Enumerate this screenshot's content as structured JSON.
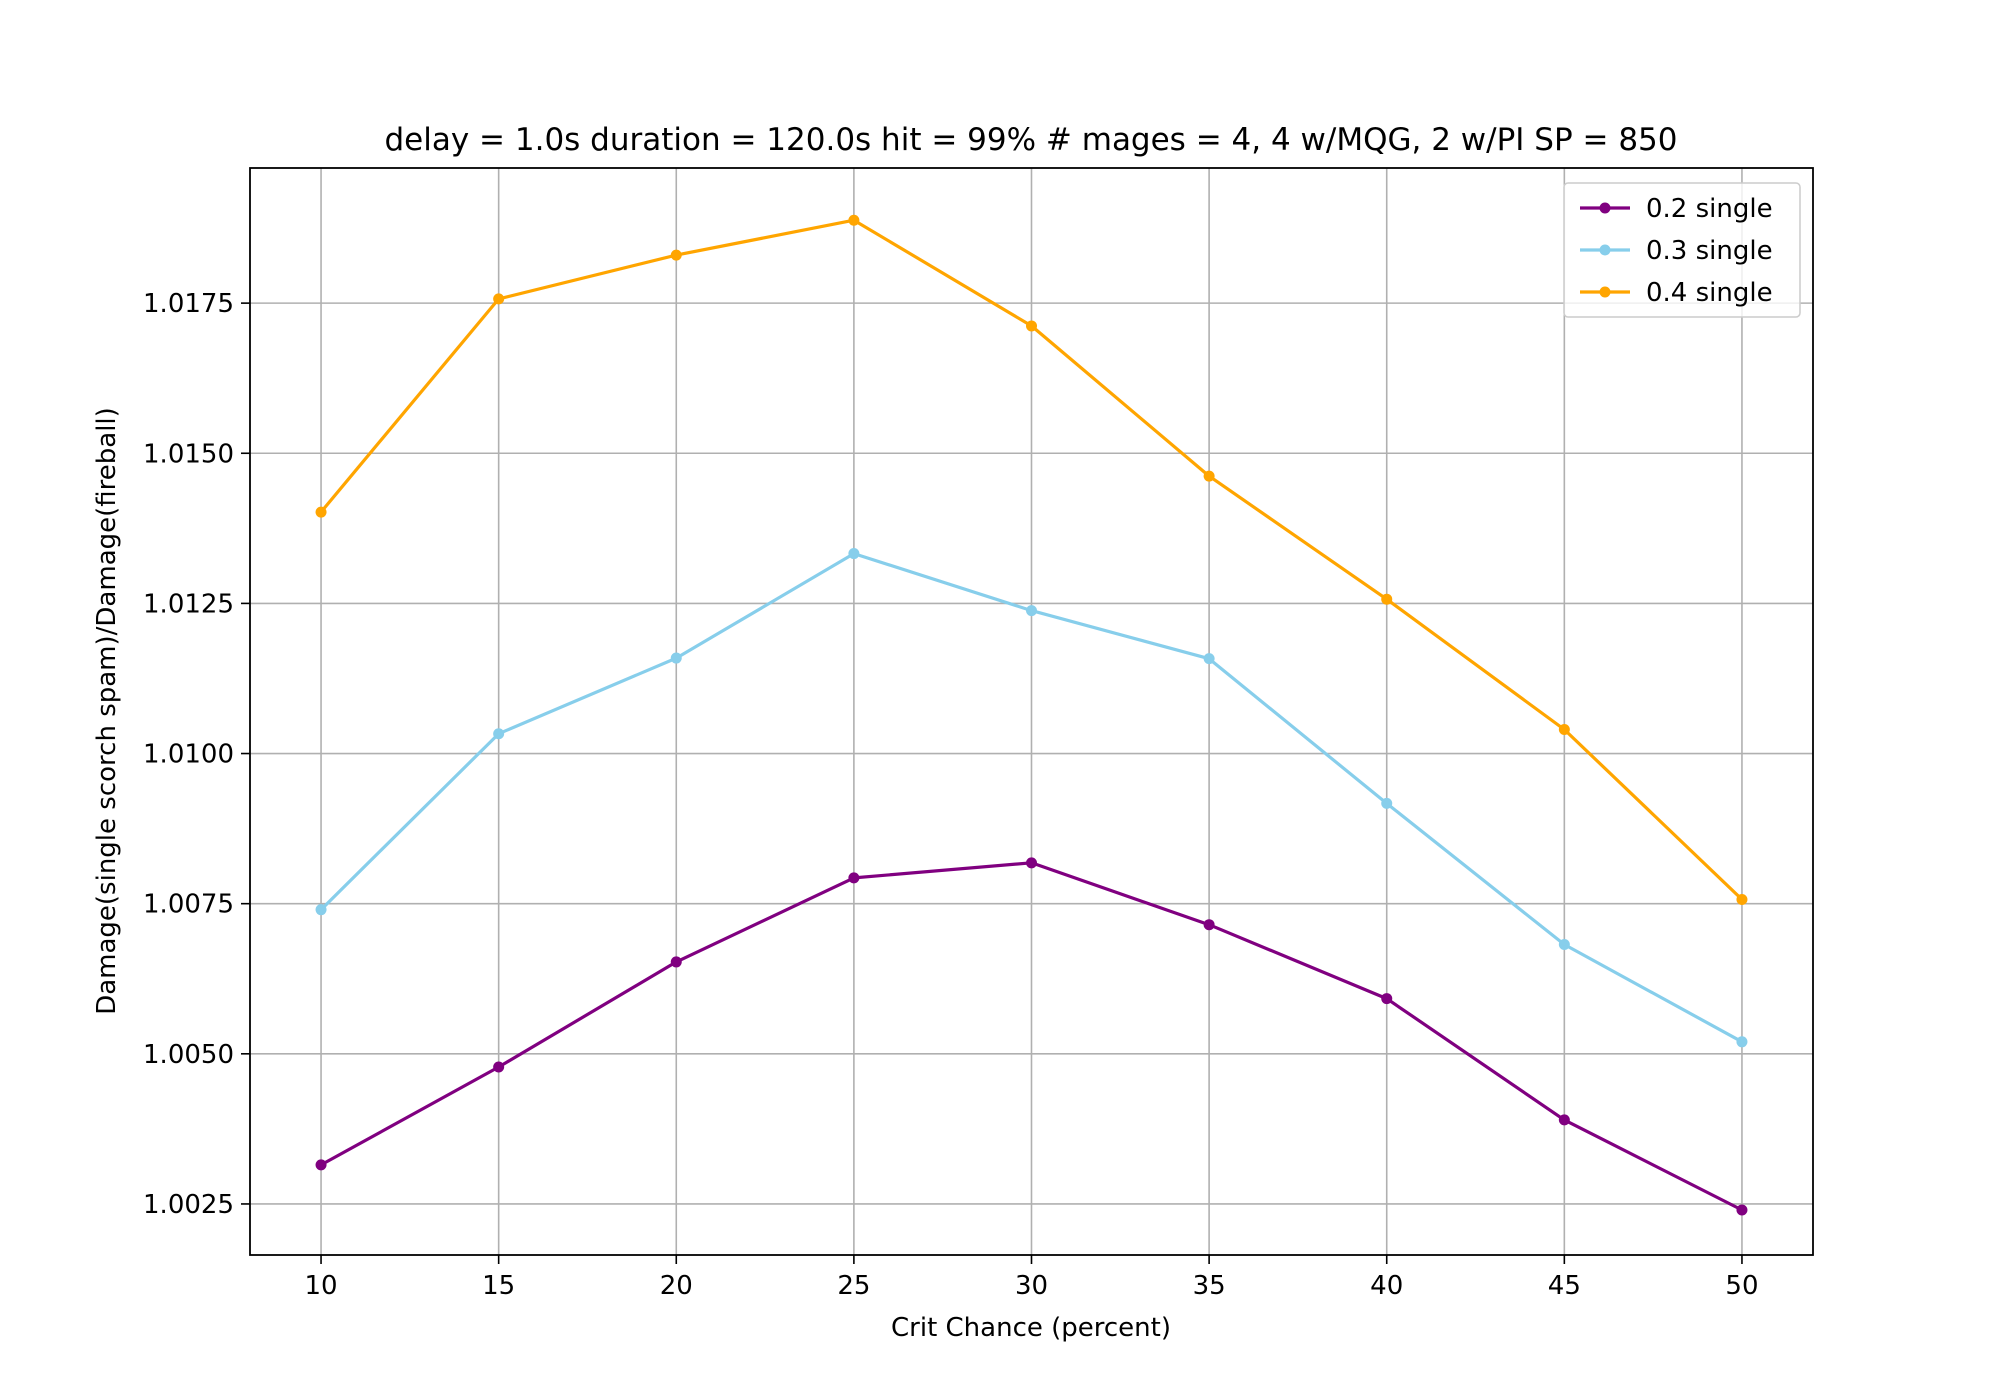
{
  "chart_data": {
    "type": "line",
    "title": "delay = 1.0s duration = 120.0s hit = 99% # mages = 4, 4 w/MQG, 2 w/PI SP = 850",
    "xlabel": "Crit Chance (percent)",
    "ylabel": "Damage(single scorch spam)/Damage(fireball)",
    "x": [
      10,
      15,
      20,
      25,
      30,
      35,
      40,
      45,
      50
    ],
    "xticks": [
      "10",
      "15",
      "20",
      "25",
      "30",
      "35",
      "40",
      "45",
      "50"
    ],
    "yticks": [
      "1.0025",
      "1.0050",
      "1.0075",
      "1.0100",
      "1.0125",
      "1.0150",
      "1.0175"
    ],
    "ytick_values": [
      1.0025,
      1.005,
      1.0075,
      1.01,
      1.0125,
      1.015,
      1.0175
    ],
    "xlim": [
      8,
      52
    ],
    "ylim": [
      1.00165,
      1.01975
    ],
    "grid": true,
    "legend_position": "top-right",
    "series": [
      {
        "name": "0.2 single",
        "color": "#800080",
        "values": [
          1.00315,
          1.00478,
          1.00653,
          1.00793,
          1.00818,
          1.00715,
          1.00592,
          1.0039,
          1.0024
        ]
      },
      {
        "name": "0.3 single",
        "color": "#87ceeb",
        "values": [
          1.0074,
          1.01033,
          1.01159,
          1.01333,
          1.01238,
          1.01158,
          1.00917,
          1.00682,
          1.0052
        ]
      },
      {
        "name": "0.4 single",
        "color": "#ffa500",
        "values": [
          1.01402,
          1.01757,
          1.0183,
          1.01888,
          1.01712,
          1.01462,
          1.01257,
          1.0104,
          1.00757
        ]
      }
    ]
  }
}
